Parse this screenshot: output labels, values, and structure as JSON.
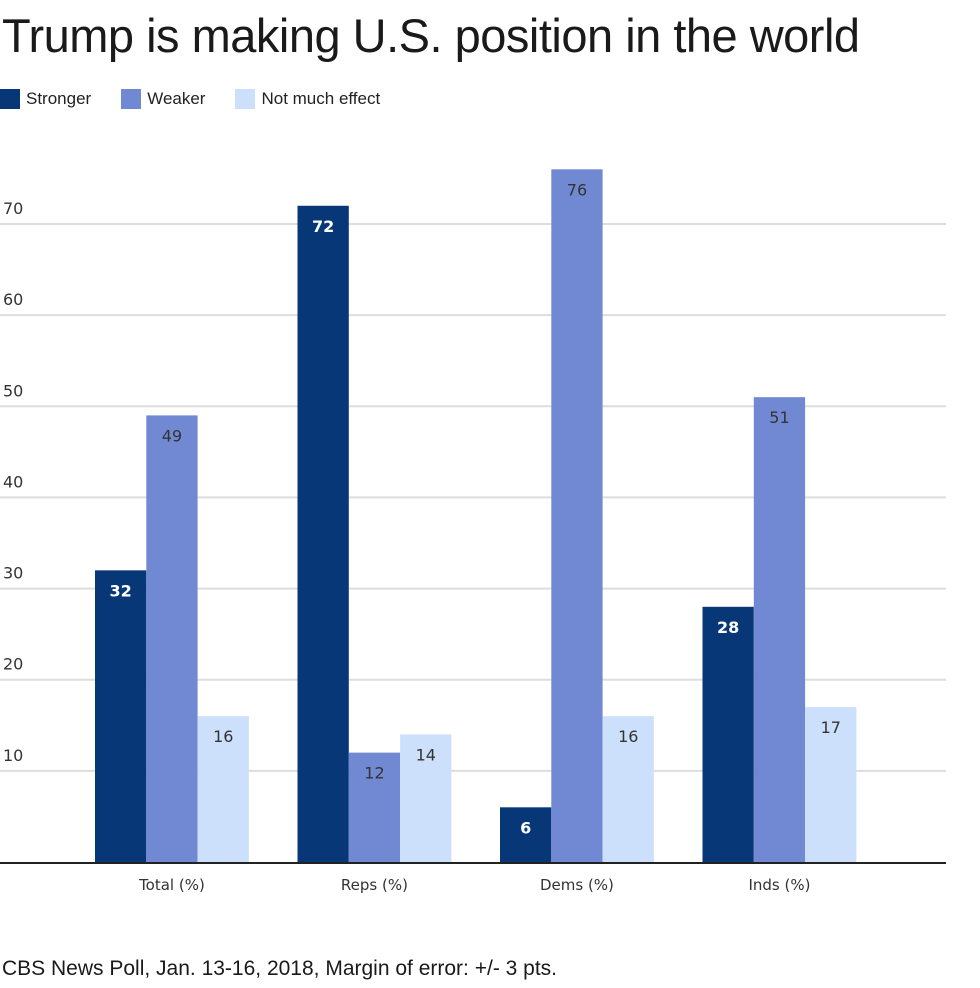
{
  "chart_data": {
    "type": "bar",
    "title": "Trump is making U.S. position in the world",
    "xlabel": "",
    "ylabel": "",
    "categories": [
      "Total (%)",
      "Reps (%)",
      "Dems (%)",
      "Inds (%)"
    ],
    "series": [
      {
        "name": "Stronger",
        "color": "#083777",
        "label_color": "#ffffff",
        "values": [
          32,
          72,
          6,
          28
        ]
      },
      {
        "name": "Weaker",
        "color": "#7189d3",
        "label_color": "#333333",
        "values": [
          49,
          12,
          76,
          51
        ]
      },
      {
        "name": "Not much effect",
        "color": "#cde0fb",
        "label_color": "#333333",
        "values": [
          16,
          14,
          16,
          17
        ]
      }
    ],
    "ylim": [
      0,
      70
    ],
    "yticks": [
      10,
      20,
      30,
      40,
      50,
      60,
      70
    ],
    "grid": true,
    "legend_position": "top-left",
    "data_labels": true
  },
  "footer": {
    "source": "CBS News Poll, Jan. 13-16, 2018, Margin of error: +/- 3 pts."
  }
}
